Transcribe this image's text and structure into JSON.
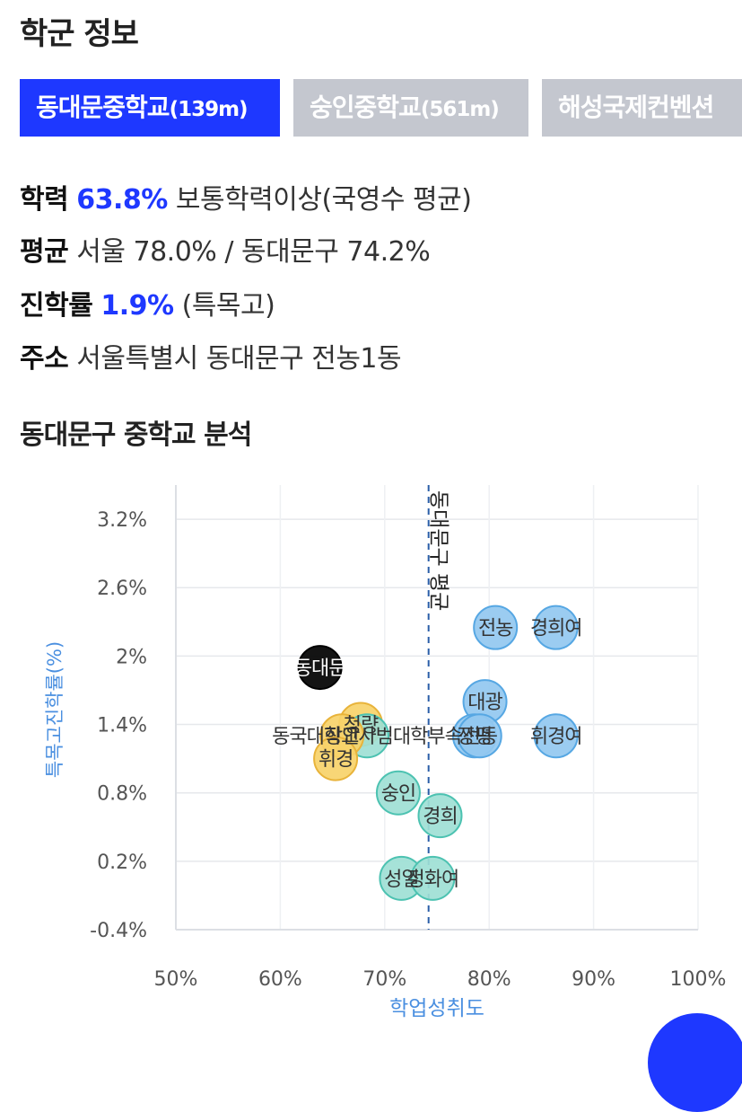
{
  "section_title": "학군 정보",
  "tabs": [
    {
      "name": "동대문중학교",
      "distance": "(139m)",
      "active": true
    },
    {
      "name": "숭인중학교",
      "distance": "(561m)",
      "active": false
    },
    {
      "name": "해성국제컨벤션",
      "distance": "",
      "active": false
    }
  ],
  "info": {
    "academic": {
      "label": "학력",
      "value": "63.8%",
      "desc": "보통학력이상(국영수 평균)"
    },
    "average": {
      "label": "평균",
      "value": "서울 78.0% / 동대문구 74.2%"
    },
    "advancement": {
      "label": "진학률",
      "value": "1.9%",
      "desc": "(특목고)"
    },
    "address": {
      "label": "주소",
      "value": "서울특별시 동대문구 전농1동"
    }
  },
  "analysis_title": "동대문구 중학교 분석",
  "colors": {
    "accent": "#1e38ff",
    "tab_inactive": "#c4c7cf",
    "axis_title": "#4a8fe0"
  },
  "chart_data": {
    "type": "scatter",
    "xlabel": "학업성취도",
    "ylabel": "특목고진학률(%)",
    "xlim": [
      50,
      100
    ],
    "ylim": [
      -0.4,
      3.5
    ],
    "xticks": [
      50,
      60,
      70,
      80,
      90,
      100
    ],
    "xtick_labels": [
      "50%",
      "60%",
      "70%",
      "80%",
      "90%",
      "100%"
    ],
    "yticks": [
      -0.4,
      0.2,
      0.8,
      1.4,
      2.0,
      2.6,
      3.2
    ],
    "ytick_labels": [
      "-0.4%",
      "0.2%",
      "0.8%",
      "1.4%",
      "2%",
      "2.6%",
      "3.2%"
    ],
    "grid": true,
    "reference_line": {
      "x": 74.2,
      "label": "동대문구 평균"
    },
    "group_colors": {
      "current": {
        "fill": "#000000",
        "stroke": "#000000",
        "text": "#ffffff"
      },
      "yellow": {
        "fill": "#f7d26a",
        "stroke": "#e8b33a",
        "text": "#333333"
      },
      "teal": {
        "fill": "#9ee0d5",
        "stroke": "#4cc2b1",
        "text": "#333333"
      },
      "blue": {
        "fill": "#92c8f0",
        "stroke": "#56a7e3",
        "text": "#333333"
      }
    },
    "points": [
      {
        "label": "동대문",
        "x": 63.8,
        "y": 1.9,
        "group": "current"
      },
      {
        "label": "전농",
        "x": 80.6,
        "y": 2.25,
        "group": "blue"
      },
      {
        "label": "경희여",
        "x": 86.4,
        "y": 2.25,
        "group": "blue"
      },
      {
        "label": "대광",
        "x": 79.6,
        "y": 1.6,
        "group": "blue"
      },
      {
        "label": "휘경여",
        "x": 86.4,
        "y": 1.3,
        "group": "blue"
      },
      {
        "label": "장평",
        "x": 78.6,
        "y": 1.3,
        "group": "blue"
      },
      {
        "label": "전동",
        "x": 79.1,
        "y": 1.3,
        "group": "blue"
      },
      {
        "label": "청량",
        "x": 67.7,
        "y": 1.4,
        "group": "yellow"
      },
      {
        "label": "동국대학교사범대학부속",
        "x": 68.3,
        "y": 1.3,
        "group": "teal"
      },
      {
        "label": "장안",
        "x": 65.9,
        "y": 1.3,
        "group": "yellow"
      },
      {
        "label": "휘경",
        "x": 65.3,
        "y": 1.1,
        "group": "yellow"
      },
      {
        "label": "숭인",
        "x": 71.3,
        "y": 0.8,
        "group": "teal"
      },
      {
        "label": "경희",
        "x": 75.3,
        "y": 0.6,
        "group": "teal"
      },
      {
        "label": "성일",
        "x": 71.6,
        "y": 0.05,
        "group": "teal"
      },
      {
        "label": "정화여",
        "x": 74.6,
        "y": 0.05,
        "group": "teal"
      }
    ]
  }
}
